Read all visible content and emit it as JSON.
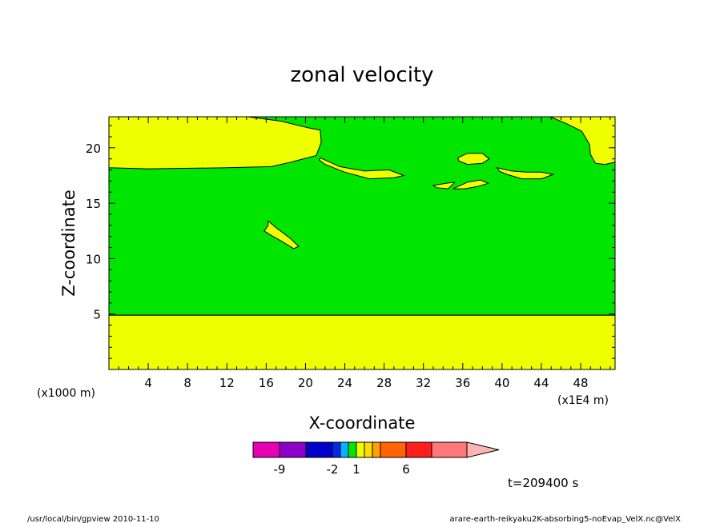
{
  "chart_data": {
    "type": "contour",
    "title": "zonal velocity",
    "xlabel": "X-coordinate",
    "ylabel": "Z-coordinate",
    "x_unit_label": "(x1E4 m)",
    "y_unit_label": "(x1000 m)",
    "xlim": [
      0,
      51.5
    ],
    "ylim": [
      0,
      22.8
    ],
    "x_ticks": [
      4,
      8,
      12,
      16,
      20,
      24,
      28,
      32,
      36,
      40,
      44,
      48
    ],
    "y_ticks": [
      5,
      10,
      15,
      20
    ],
    "background_level_color": "#00e600",
    "regions": [
      {
        "color": "#f0ff00",
        "points": [
          [
            0,
            0
          ],
          [
            51.5,
            0
          ],
          [
            51.5,
            4.9
          ],
          [
            0,
            4.9
          ]
        ]
      },
      {
        "color": "#f0ff00",
        "points": [
          [
            0,
            22.8
          ],
          [
            14.1,
            22.8
          ],
          [
            17.5,
            22.4
          ],
          [
            20.3,
            21.8
          ],
          [
            21.5,
            21.6
          ],
          [
            21.6,
            20.5
          ],
          [
            21.1,
            19.3
          ],
          [
            20.2,
            19.1
          ],
          [
            18.5,
            18.7
          ],
          [
            16.5,
            18.3
          ],
          [
            12.0,
            18.2
          ],
          [
            4.0,
            18.1
          ],
          [
            0,
            18.2
          ]
        ]
      },
      {
        "color": "#f0ff00",
        "points": [
          [
            44.9,
            22.8
          ],
          [
            51.5,
            22.8
          ],
          [
            51.5,
            18.7
          ],
          [
            50.5,
            18.5
          ],
          [
            49.5,
            18.6
          ],
          [
            49.0,
            19.4
          ],
          [
            48.9,
            20.3
          ],
          [
            48.1,
            21.5
          ],
          [
            46.5,
            22.2
          ]
        ]
      },
      {
        "color": "#f0ff00",
        "points": [
          [
            21.5,
            19.1
          ],
          [
            23.5,
            18.3
          ],
          [
            26.0,
            17.9
          ],
          [
            28.5,
            18.0
          ],
          [
            30.0,
            17.5
          ],
          [
            29.0,
            17.3
          ],
          [
            26.5,
            17.2
          ],
          [
            24.0,
            17.8
          ],
          [
            22.0,
            18.5
          ],
          [
            21.4,
            18.9
          ]
        ]
      },
      {
        "color": "#f0ff00",
        "points": [
          [
            35.5,
            19.1
          ],
          [
            36.5,
            19.5
          ],
          [
            38.0,
            19.5
          ],
          [
            38.7,
            19.0
          ],
          [
            38.0,
            18.6
          ],
          [
            36.5,
            18.5
          ],
          [
            35.6,
            18.8
          ]
        ]
      },
      {
        "color": "#f0ff00",
        "points": [
          [
            39.5,
            18.2
          ],
          [
            41.0,
            17.9
          ],
          [
            42.5,
            17.8
          ],
          [
            44.0,
            17.8
          ],
          [
            45.2,
            17.6
          ],
          [
            44.0,
            17.2
          ],
          [
            42.0,
            17.2
          ],
          [
            40.5,
            17.6
          ],
          [
            39.7,
            17.9
          ]
        ]
      },
      {
        "color": "#f0ff00",
        "points": [
          [
            33.0,
            16.6
          ],
          [
            34.3,
            16.8
          ],
          [
            35.2,
            16.9
          ],
          [
            34.5,
            16.3
          ],
          [
            33.3,
            16.4
          ]
        ]
      },
      {
        "color": "#f0ff00",
        "points": [
          [
            35.0,
            16.3
          ],
          [
            36.5,
            16.9
          ],
          [
            37.8,
            17.1
          ],
          [
            38.6,
            16.8
          ],
          [
            37.5,
            16.5
          ],
          [
            36.2,
            16.3
          ]
        ]
      },
      {
        "color": "#f0ff00",
        "points": [
          [
            15.8,
            12.5
          ],
          [
            16.2,
            13.0
          ],
          [
            16.2,
            13.4
          ],
          [
            17.0,
            12.8
          ],
          [
            18.5,
            11.8
          ],
          [
            19.3,
            11.1
          ],
          [
            18.8,
            10.9
          ],
          [
            17.5,
            11.6
          ],
          [
            16.5,
            12.1
          ]
        ]
      }
    ],
    "boundary_line": {
      "y": 4.9
    },
    "colorbar": {
      "colors": [
        "#e600b4",
        "#8c00c8",
        "#0000c8",
        "#0028e6",
        "#00b4ff",
        "#00e600",
        "#f0ff00",
        "#ffdc00",
        "#ffa000",
        "#ff6400",
        "#ff1e1e",
        "#ff7878",
        "#ffb4b4"
      ],
      "tick_labels": [
        "-9",
        "-2",
        "1",
        "6"
      ]
    }
  },
  "timestamp": "t=209400 s",
  "footer_left": "/usr/local/bin/gpview  2010-11-10",
  "footer_right": "arare-earth-reikyaku2K-absorbing5-noEvap_VelX.nc@VelX"
}
